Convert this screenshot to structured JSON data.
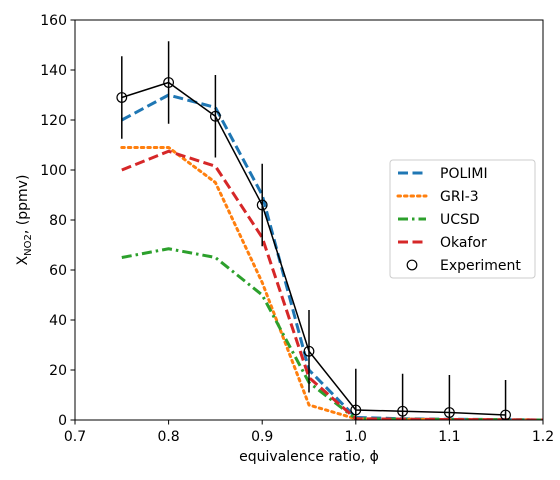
{
  "chart_data": {
    "type": "line",
    "xlabel": "equivalence ratio, ϕ",
    "ylabel": {
      "main": "X",
      "sub": "NO2",
      "tail": ", (ppmv)"
    },
    "xlim": [
      0.7,
      1.2
    ],
    "ylim": [
      0,
      160
    ],
    "xticks": [
      0.7,
      0.8,
      0.9,
      1.0,
      1.1,
      1.2
    ],
    "xtick_labels": [
      "0.7",
      "0.8",
      "0.9",
      "1.0",
      "1.1",
      "1.2"
    ],
    "yticks": [
      0,
      20,
      40,
      60,
      80,
      100,
      120,
      140,
      160
    ],
    "ytick_labels": [
      "0",
      "20",
      "40",
      "60",
      "80",
      "100",
      "120",
      "140",
      "160"
    ],
    "legend_position": "center-right",
    "series": [
      {
        "name": "POLIMI",
        "color": "#1f77b4",
        "style": "dashed",
        "x": [
          0.75,
          0.8,
          0.85,
          0.9,
          0.95,
          1.0,
          1.05,
          1.1,
          1.15,
          1.2
        ],
        "y": [
          120,
          130,
          125,
          90,
          20,
          1,
          0.5,
          0.3,
          0.2,
          0
        ]
      },
      {
        "name": "GRI-3",
        "color": "#ff7f0e",
        "style": "dotted",
        "x": [
          0.75,
          0.8,
          0.85,
          0.9,
          0.95,
          1.0,
          1.05,
          1.1,
          1.15,
          1.2
        ],
        "y": [
          109,
          109,
          95,
          55,
          6,
          0.5,
          0.3,
          0.2,
          0.1,
          0
        ]
      },
      {
        "name": "UCSD",
        "color": "#2ca02c",
        "style": "dashdot",
        "x": [
          0.75,
          0.8,
          0.85,
          0.9,
          0.95,
          1.0,
          1.05,
          1.1,
          1.15,
          1.2
        ],
        "y": [
          65,
          68.5,
          65,
          50,
          15,
          0.5,
          0.3,
          0.2,
          0.1,
          0
        ]
      },
      {
        "name": "Okafor",
        "color": "#d62728",
        "style": "dashed",
        "x": [
          0.75,
          0.8,
          0.85,
          0.9,
          0.95,
          1.0,
          1.05,
          1.1,
          1.15,
          1.2
        ],
        "y": [
          100,
          107.5,
          101.5,
          73,
          17,
          0.5,
          0.3,
          0.2,
          0.1,
          0
        ]
      }
    ],
    "experiment": {
      "name": "Experiment",
      "color": "#000000",
      "x": [
        0.75,
        0.8,
        0.85,
        0.9,
        0.95,
        1.0,
        1.05,
        1.1,
        1.16
      ],
      "y": [
        129,
        135,
        121.5,
        86,
        27.5,
        4,
        3.5,
        3,
        2
      ],
      "yerr": [
        16.5,
        16.5,
        16.5,
        16.5,
        16.5,
        16.5,
        15,
        15,
        14
      ]
    }
  }
}
